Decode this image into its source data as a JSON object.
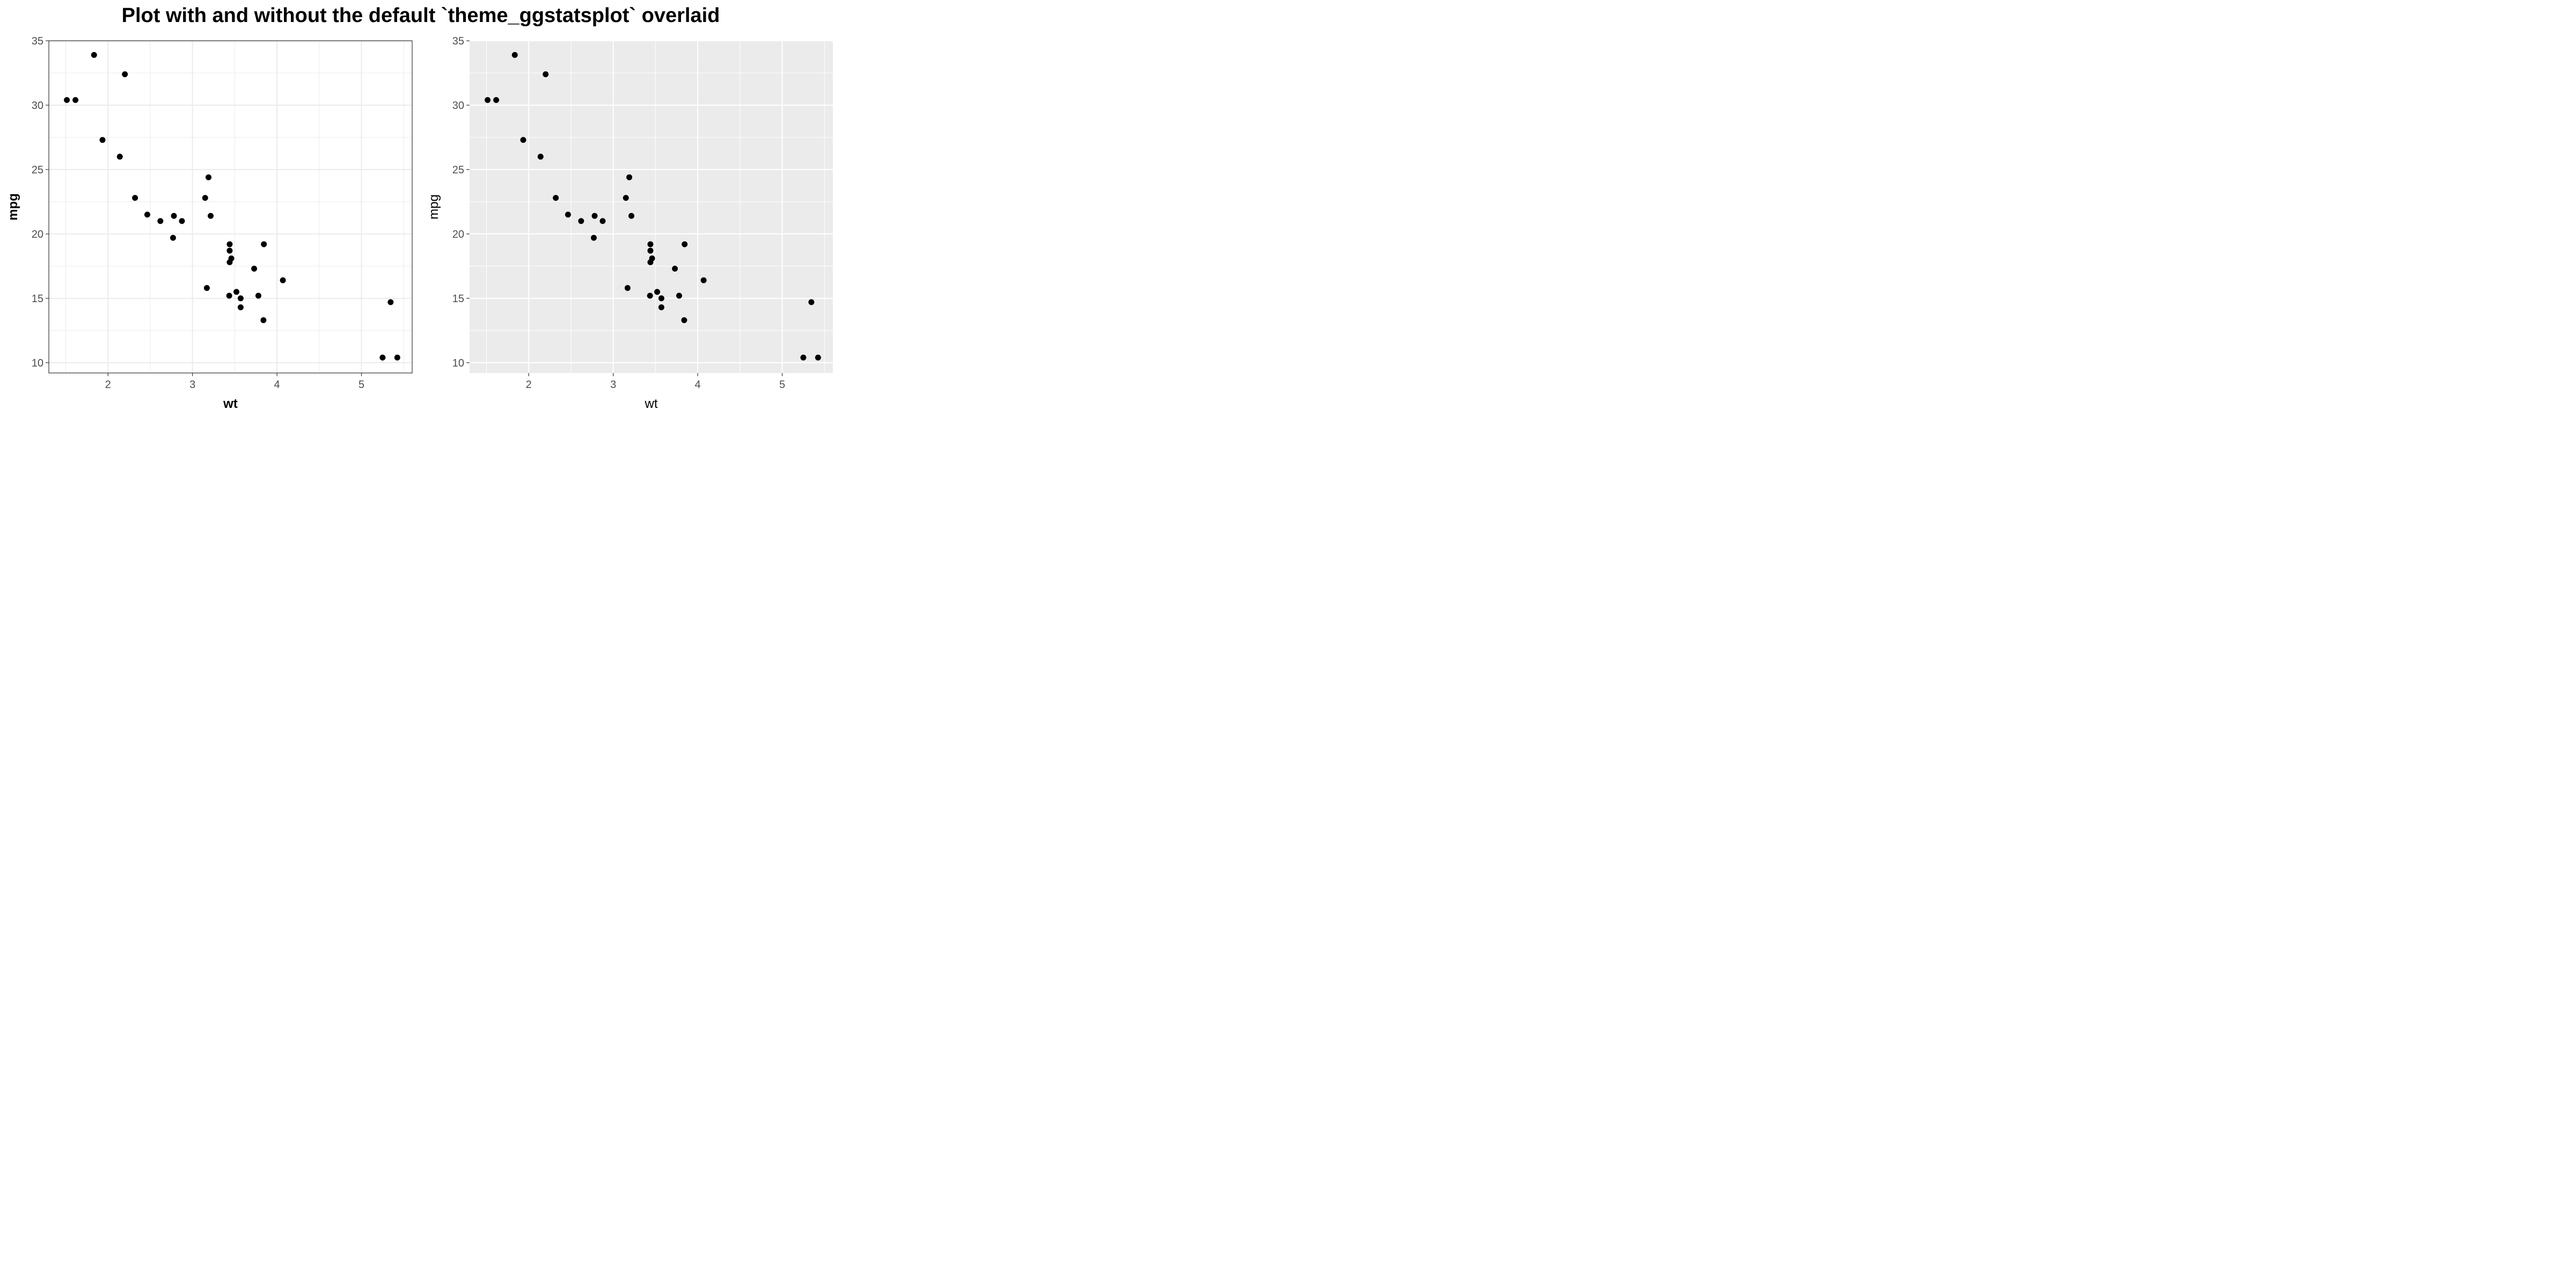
{
  "title": "Plot with and without the default `theme_ggstatsplot` overlaid",
  "colors": {
    "point": "#000000",
    "panel_left_bg": "#ffffff",
    "panel_left_grid": "#ebebeb",
    "panel_left_border": "#333333",
    "panel_right_bg": "#ebebeb",
    "panel_right_grid": "#ffffff",
    "tick_text": "#4d4d4d"
  },
  "chart_data": [
    {
      "type": "scatter",
      "theme": "theme_ggstatsplot",
      "xlabel": "wt",
      "ylabel": "mpg",
      "axis_titles_bold": true,
      "grid": true,
      "panel_border": true,
      "xlim": [
        1.3,
        5.6
      ],
      "ylim": [
        9.2,
        35.0
      ],
      "x_ticks": [
        2,
        3,
        4,
        5
      ],
      "y_ticks": [
        10,
        15,
        20,
        25,
        30,
        35
      ],
      "x_tick_labels": [
        "2",
        "3",
        "4",
        "5"
      ],
      "y_tick_labels": [
        "10",
        "15",
        "20",
        "25",
        "30",
        "35"
      ],
      "x": [
        2.62,
        2.875,
        2.32,
        3.215,
        3.44,
        3.46,
        3.57,
        3.19,
        3.15,
        3.44,
        3.44,
        4.07,
        3.73,
        3.78,
        5.25,
        5.424,
        5.345,
        2.2,
        1.615,
        1.835,
        2.465,
        3.52,
        3.435,
        3.84,
        3.845,
        1.935,
        2.14,
        1.513,
        3.17,
        2.77,
        3.57,
        2.78
      ],
      "y": [
        21.0,
        21.0,
        22.8,
        21.4,
        18.7,
        18.1,
        14.3,
        24.4,
        22.8,
        19.2,
        17.8,
        16.4,
        17.3,
        15.2,
        10.4,
        10.4,
        14.7,
        32.4,
        30.4,
        33.9,
        21.5,
        15.5,
        15.2,
        13.3,
        19.2,
        27.3,
        26.0,
        30.4,
        15.8,
        19.7,
        15.0,
        21.4
      ]
    },
    {
      "type": "scatter",
      "theme": "ggplot2 default",
      "xlabel": "wt",
      "ylabel": "mpg",
      "axis_titles_bold": false,
      "grid": true,
      "panel_border": false,
      "xlim": [
        1.3,
        5.6
      ],
      "ylim": [
        9.2,
        35.0
      ],
      "x_ticks": [
        2,
        3,
        4,
        5
      ],
      "y_ticks": [
        10,
        15,
        20,
        25,
        30,
        35
      ],
      "x_tick_labels": [
        "2",
        "3",
        "4",
        "5"
      ],
      "y_tick_labels": [
        "10",
        "15",
        "20",
        "25",
        "30",
        "35"
      ],
      "x": [
        2.62,
        2.875,
        2.32,
        3.215,
        3.44,
        3.46,
        3.57,
        3.19,
        3.15,
        3.44,
        3.44,
        4.07,
        3.73,
        3.78,
        5.25,
        5.424,
        5.345,
        2.2,
        1.615,
        1.835,
        2.465,
        3.52,
        3.435,
        3.84,
        3.845,
        1.935,
        2.14,
        1.513,
        3.17,
        2.77,
        3.57,
        2.78
      ],
      "y": [
        21.0,
        21.0,
        22.8,
        21.4,
        18.7,
        18.1,
        14.3,
        24.4,
        22.8,
        19.2,
        17.8,
        16.4,
        17.3,
        15.2,
        10.4,
        10.4,
        14.7,
        32.4,
        30.4,
        33.9,
        21.5,
        15.5,
        15.2,
        13.3,
        19.2,
        27.3,
        26.0,
        30.4,
        15.8,
        19.7,
        15.0,
        21.4
      ]
    }
  ]
}
